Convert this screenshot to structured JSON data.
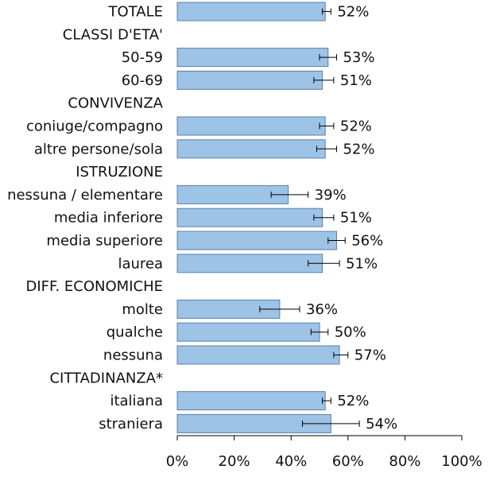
{
  "chart_data": {
    "type": "bar",
    "orientation": "horizontal",
    "categories": [
      "TOTALE",
      "CLASSI D'ETA'",
      "50-59",
      "60-69",
      "CONVIVENZA",
      "coniuge/compagno",
      "altre persone/sola",
      "ISTRUZIONE",
      "nessuna / elementare",
      "media inferiore",
      "media superiore",
      "laurea",
      "DIFF. ECONOMICHE",
      "molte",
      "qualche",
      "nessuna",
      "CITTADINANZA*",
      "italiana",
      "straniera"
    ],
    "values": [
      52,
      null,
      53,
      51,
      null,
      52,
      52,
      null,
      39,
      51,
      56,
      51,
      null,
      36,
      50,
      57,
      null,
      52,
      54
    ],
    "value_labels": [
      "52%",
      "",
      "53%",
      "51%",
      "",
      "52%",
      "52%",
      "",
      "39%",
      "51%",
      "56%",
      "51%",
      "",
      "36%",
      "50%",
      "57%",
      "",
      "52%",
      "54%"
    ],
    "error_low": [
      51,
      null,
      50,
      48,
      null,
      50,
      49,
      null,
      33,
      48,
      53,
      46,
      null,
      29,
      47,
      55,
      null,
      51,
      44
    ],
    "error_high": [
      54,
      null,
      56,
      55,
      null,
      55,
      56,
      null,
      46,
      55,
      59,
      57,
      null,
      43,
      53,
      60,
      null,
      54,
      64
    ],
    "xlim": [
      0,
      100
    ],
    "xticks": [
      "0%",
      "20%",
      "40%",
      "60%",
      "80%",
      "100%"
    ],
    "tick_values": [
      0,
      20,
      40,
      60,
      80,
      100
    ],
    "grid": false,
    "legend": "none",
    "bar_color": "#9dc3e6",
    "bar_edge_color": "#5b7fa8",
    "axis_color": "#000000"
  }
}
